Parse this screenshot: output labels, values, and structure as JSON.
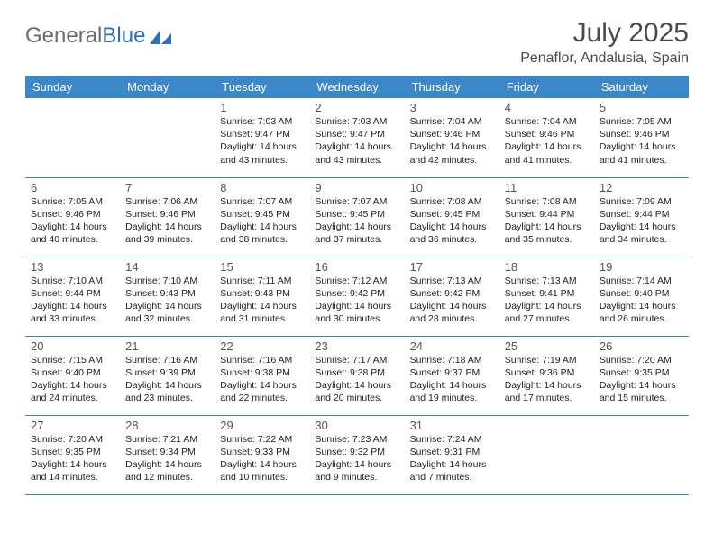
{
  "brand": {
    "part1": "General",
    "part2": "Blue"
  },
  "title": "July 2025",
  "location": "Penaflor, Andalusia, Spain",
  "colors": {
    "header_bg": "#3b87c8",
    "header_text": "#ffffff",
    "border": "#3b87c8",
    "text": "#222222",
    "daynum": "#555555",
    "title": "#4a4a4a",
    "brand_blue": "#2f6fb3",
    "brand_gray": "#6b6b6b"
  },
  "weekdays": [
    "Sunday",
    "Monday",
    "Tuesday",
    "Wednesday",
    "Thursday",
    "Friday",
    "Saturday"
  ],
  "first_weekday_index": 2,
  "days_in_month": 31,
  "days": {
    "1": {
      "sunrise": "7:03 AM",
      "sunset": "9:47 PM",
      "daylight": "14 hours and 43 minutes."
    },
    "2": {
      "sunrise": "7:03 AM",
      "sunset": "9:47 PM",
      "daylight": "14 hours and 43 minutes."
    },
    "3": {
      "sunrise": "7:04 AM",
      "sunset": "9:46 PM",
      "daylight": "14 hours and 42 minutes."
    },
    "4": {
      "sunrise": "7:04 AM",
      "sunset": "9:46 PM",
      "daylight": "14 hours and 41 minutes."
    },
    "5": {
      "sunrise": "7:05 AM",
      "sunset": "9:46 PM",
      "daylight": "14 hours and 41 minutes."
    },
    "6": {
      "sunrise": "7:05 AM",
      "sunset": "9:46 PM",
      "daylight": "14 hours and 40 minutes."
    },
    "7": {
      "sunrise": "7:06 AM",
      "sunset": "9:46 PM",
      "daylight": "14 hours and 39 minutes."
    },
    "8": {
      "sunrise": "7:07 AM",
      "sunset": "9:45 PM",
      "daylight": "14 hours and 38 minutes."
    },
    "9": {
      "sunrise": "7:07 AM",
      "sunset": "9:45 PM",
      "daylight": "14 hours and 37 minutes."
    },
    "10": {
      "sunrise": "7:08 AM",
      "sunset": "9:45 PM",
      "daylight": "14 hours and 36 minutes."
    },
    "11": {
      "sunrise": "7:08 AM",
      "sunset": "9:44 PM",
      "daylight": "14 hours and 35 minutes."
    },
    "12": {
      "sunrise": "7:09 AM",
      "sunset": "9:44 PM",
      "daylight": "14 hours and 34 minutes."
    },
    "13": {
      "sunrise": "7:10 AM",
      "sunset": "9:44 PM",
      "daylight": "14 hours and 33 minutes."
    },
    "14": {
      "sunrise": "7:10 AM",
      "sunset": "9:43 PM",
      "daylight": "14 hours and 32 minutes."
    },
    "15": {
      "sunrise": "7:11 AM",
      "sunset": "9:43 PM",
      "daylight": "14 hours and 31 minutes."
    },
    "16": {
      "sunrise": "7:12 AM",
      "sunset": "9:42 PM",
      "daylight": "14 hours and 30 minutes."
    },
    "17": {
      "sunrise": "7:13 AM",
      "sunset": "9:42 PM",
      "daylight": "14 hours and 28 minutes."
    },
    "18": {
      "sunrise": "7:13 AM",
      "sunset": "9:41 PM",
      "daylight": "14 hours and 27 minutes."
    },
    "19": {
      "sunrise": "7:14 AM",
      "sunset": "9:40 PM",
      "daylight": "14 hours and 26 minutes."
    },
    "20": {
      "sunrise": "7:15 AM",
      "sunset": "9:40 PM",
      "daylight": "14 hours and 24 minutes."
    },
    "21": {
      "sunrise": "7:16 AM",
      "sunset": "9:39 PM",
      "daylight": "14 hours and 23 minutes."
    },
    "22": {
      "sunrise": "7:16 AM",
      "sunset": "9:38 PM",
      "daylight": "14 hours and 22 minutes."
    },
    "23": {
      "sunrise": "7:17 AM",
      "sunset": "9:38 PM",
      "daylight": "14 hours and 20 minutes."
    },
    "24": {
      "sunrise": "7:18 AM",
      "sunset": "9:37 PM",
      "daylight": "14 hours and 19 minutes."
    },
    "25": {
      "sunrise": "7:19 AM",
      "sunset": "9:36 PM",
      "daylight": "14 hours and 17 minutes."
    },
    "26": {
      "sunrise": "7:20 AM",
      "sunset": "9:35 PM",
      "daylight": "14 hours and 15 minutes."
    },
    "27": {
      "sunrise": "7:20 AM",
      "sunset": "9:35 PM",
      "daylight": "14 hours and 14 minutes."
    },
    "28": {
      "sunrise": "7:21 AM",
      "sunset": "9:34 PM",
      "daylight": "14 hours and 12 minutes."
    },
    "29": {
      "sunrise": "7:22 AM",
      "sunset": "9:33 PM",
      "daylight": "14 hours and 10 minutes."
    },
    "30": {
      "sunrise": "7:23 AM",
      "sunset": "9:32 PM",
      "daylight": "14 hours and 9 minutes."
    },
    "31": {
      "sunrise": "7:24 AM",
      "sunset": "9:31 PM",
      "daylight": "14 hours and 7 minutes."
    }
  },
  "labels": {
    "sunrise": "Sunrise:",
    "sunset": "Sunset:",
    "daylight": "Daylight:"
  }
}
